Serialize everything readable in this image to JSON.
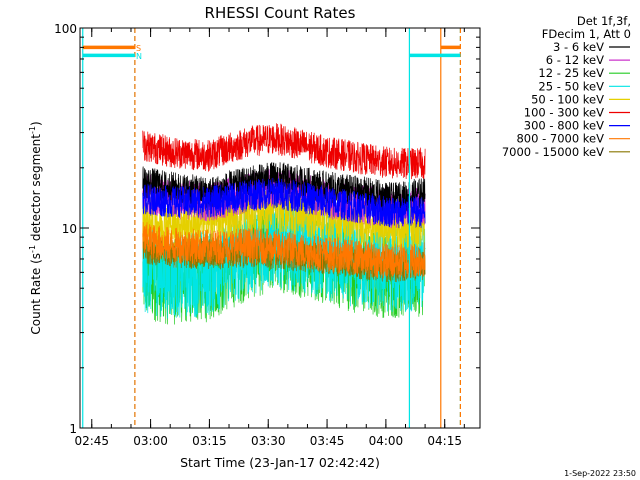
{
  "chart_data": {
    "type": "line",
    "title": "RHESSI Count Rates",
    "ylabel_main": "Count Rate (s",
    "ylabel_sup1": "-1",
    "ylabel_mid": " detector segment",
    "ylabel_sup2": "-1",
    "ylabel_end": ")",
    "xlabel": "Start Time (23-Jan-17 02:42:42)",
    "timestamp": "1-Sep-2022 23:50",
    "y_scale": "log",
    "ylim": [
      1,
      100
    ],
    "y_ticks": [
      {
        "v": 1,
        "label": "1"
      },
      {
        "v": 10,
        "label": "10"
      },
      {
        "v": 100,
        "label": "100"
      }
    ],
    "xlim": [
      "02:42",
      "04:24"
    ],
    "x_ticks": [
      "02:45",
      "03:00",
      "03:15",
      "03:30",
      "03:45",
      "04:00",
      "04:15"
    ],
    "legend_header": [
      "Det 1f,3f,",
      "FDecim 1, Att 0"
    ],
    "legend_position": "outside-right",
    "series": [
      {
        "name": "3 - 6 keV",
        "color": "#000000",
        "t": [
          "02:58",
          "03:05",
          "03:15",
          "03:25",
          "03:32",
          "03:45",
          "03:55",
          "04:02",
          "04:10"
        ],
        "y": [
          17,
          16,
          15,
          17,
          18,
          16,
          15,
          14,
          15
        ]
      },
      {
        "name": "6 - 12 keV",
        "color": "#cc33cc",
        "t": [
          "02:58",
          "03:05",
          "03:15",
          "03:25",
          "03:32",
          "03:45",
          "03:55",
          "04:02",
          "04:10"
        ],
        "y": [
          15,
          14,
          13.5,
          15,
          16,
          14,
          13,
          12.5,
          13
        ]
      },
      {
        "name": "12 - 25 keV",
        "color": "#22cc22",
        "t": [
          "02:58",
          "03:05",
          "03:15",
          "03:25",
          "03:32",
          "03:45",
          "03:55",
          "04:02",
          "04:10"
        ],
        "y": [
          5.8,
          5.4,
          5.6,
          7.2,
          8,
          6.8,
          6,
          5.8,
          6
        ]
      },
      {
        "name": "25 - 50 keV",
        "color": "#00e5e5",
        "t": [
          "02:58",
          "03:05",
          "03:15",
          "03:25",
          "03:32",
          "03:45",
          "03:55",
          "04:02",
          "04:10"
        ],
        "y": [
          6.2,
          5.8,
          6,
          7.6,
          8.4,
          7.2,
          6.4,
          6.2,
          6.4
        ]
      },
      {
        "name": "50 - 100 keV",
        "color": "#e5d000",
        "t": [
          "02:58",
          "03:05",
          "03:15",
          "03:25",
          "03:32",
          "03:45",
          "03:55",
          "04:02",
          "04:10"
        ],
        "y": [
          11,
          10.5,
          10.8,
          12,
          12.5,
          11.2,
          10.5,
          10,
          10.5
        ]
      },
      {
        "name": "100 - 300 keV",
        "color": "#ee0000",
        "t": [
          "02:58",
          "03:05",
          "03:15",
          "03:25",
          "03:32",
          "03:45",
          "03:55",
          "04:02",
          "04:10"
        ],
        "y": [
          26,
          24,
          23,
          27,
          28,
          24,
          22,
          21,
          21
        ]
      },
      {
        "name": "300 - 800 keV",
        "color": "#0000ff",
        "t": [
          "02:58",
          "03:05",
          "03:15",
          "03:25",
          "03:32",
          "03:45",
          "03:55",
          "04:02",
          "04:10"
        ],
        "y": [
          14,
          13.5,
          13.5,
          14.5,
          15,
          13.5,
          12.5,
          12,
          12
        ]
      },
      {
        "name": "800 - 7000 keV",
        "color": "#ff7700",
        "t": [
          "02:58",
          "03:05",
          "03:15",
          "03:25",
          "03:32",
          "03:45",
          "03:55",
          "04:02",
          "04:10"
        ],
        "y": [
          8.8,
          8.2,
          8,
          8.2,
          8,
          7.4,
          7,
          6.8,
          7
        ]
      },
      {
        "name": "7000 - 15000 keV",
        "color": "#887700",
        "t": [
          "02:58",
          "03:05",
          "03:15",
          "03:25",
          "03:32",
          "03:45",
          "03:55",
          "04:02",
          "04:10"
        ],
        "y": [
          8,
          7.6,
          7.4,
          7.6,
          7.4,
          7,
          6.6,
          6.4,
          6.6
        ]
      }
    ],
    "annotations": {
      "flag_labels": [
        {
          "label": "S",
          "color": "#ff7700"
        },
        {
          "label": "N",
          "color": "#00e5e5"
        }
      ],
      "vlines": [
        {
          "t": "02:42:42",
          "color": "#00e5e5",
          "style": "solid"
        },
        {
          "t": "02:56",
          "color": "#00e5e5",
          "style": "dashed"
        },
        {
          "t": "02:56",
          "color": "#ff7700",
          "style": "dashed"
        },
        {
          "t": "04:06",
          "color": "#00e5e5",
          "style": "solid"
        },
        {
          "t": "04:14",
          "color": "#ff7700",
          "style": "solid"
        },
        {
          "t": "04:19",
          "color": "#00e5e5",
          "style": "dashed"
        },
        {
          "t": "04:19",
          "color": "#ff7700",
          "style": "dashed"
        }
      ],
      "hbars": [
        {
          "t0": "02:42:42",
          "t1": "02:56",
          "y": 80,
          "color": "#ff7700"
        },
        {
          "t0": "02:42:42",
          "t1": "02:56",
          "y": 73,
          "color": "#00e5e5"
        },
        {
          "t0": "04:14",
          "t1": "04:19",
          "y": 80,
          "color": "#ff7700"
        },
        {
          "t0": "04:06",
          "t1": "04:19",
          "y": 73,
          "color": "#00e5e5"
        }
      ]
    }
  }
}
